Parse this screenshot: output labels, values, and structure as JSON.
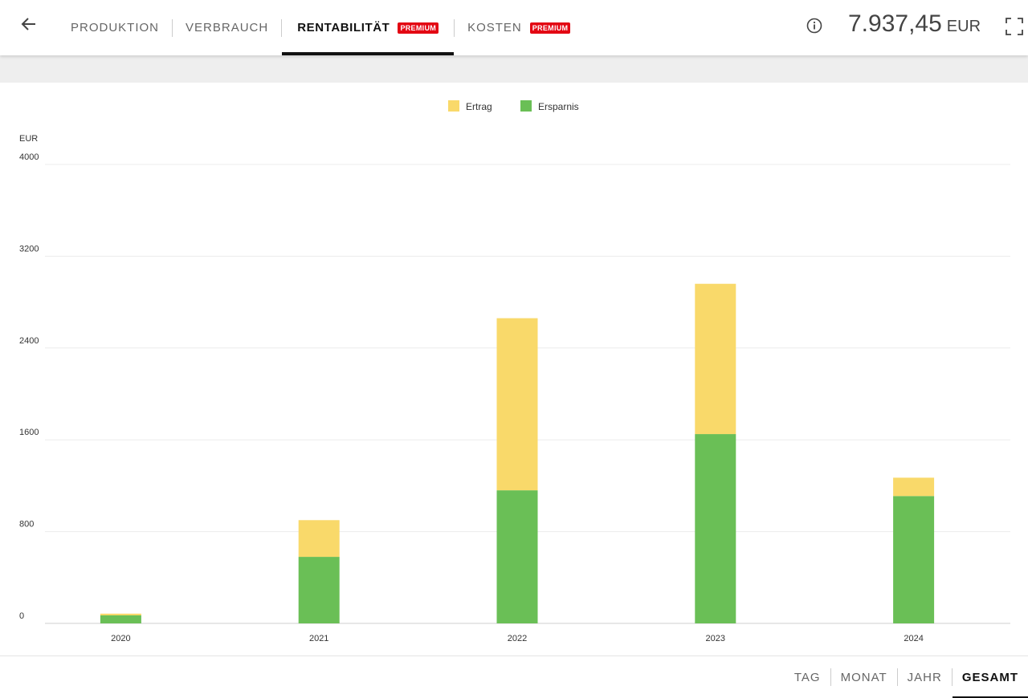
{
  "nav": {
    "tabs": [
      {
        "label": "PRODUKTION"
      },
      {
        "label": "VERBRAUCH"
      },
      {
        "label": "RENTABILITÄT",
        "badge": "PREMIUM"
      },
      {
        "label": "KOSTEN",
        "badge": "PREMIUM"
      }
    ],
    "active_tab": "RENTABILITÄT",
    "total_value": "7.937,45",
    "total_unit": "EUR",
    "icons": [
      "arrow-left-icon",
      "info-icon",
      "fullscreen-icon"
    ]
  },
  "range": {
    "items": [
      "TAG",
      "MONAT",
      "JAHR",
      "GESAMT"
    ],
    "active": "GESAMT"
  },
  "colors": {
    "ertrag": "#f9d96a",
    "ersparnis": "#6abf56",
    "premium": "#e30613"
  },
  "chart_data": {
    "type": "bar",
    "stacked": true,
    "unit_label": "EUR",
    "categories": [
      "2020",
      "2021",
      "2022",
      "2023",
      "2024"
    ],
    "series": [
      {
        "name": "Ersparnis",
        "values": [
          70,
          580,
          1160,
          1650,
          1110
        ]
      },
      {
        "name": "Ertrag",
        "values": [
          15,
          320,
          1500,
          1310,
          160
        ]
      }
    ],
    "ylim": [
      0,
      4000
    ],
    "yticks": [
      0,
      800,
      1600,
      2400,
      3200,
      4000
    ],
    "legend": [
      "Ertrag",
      "Ersparnis"
    ],
    "legend_position": "top-center",
    "grid": true
  }
}
